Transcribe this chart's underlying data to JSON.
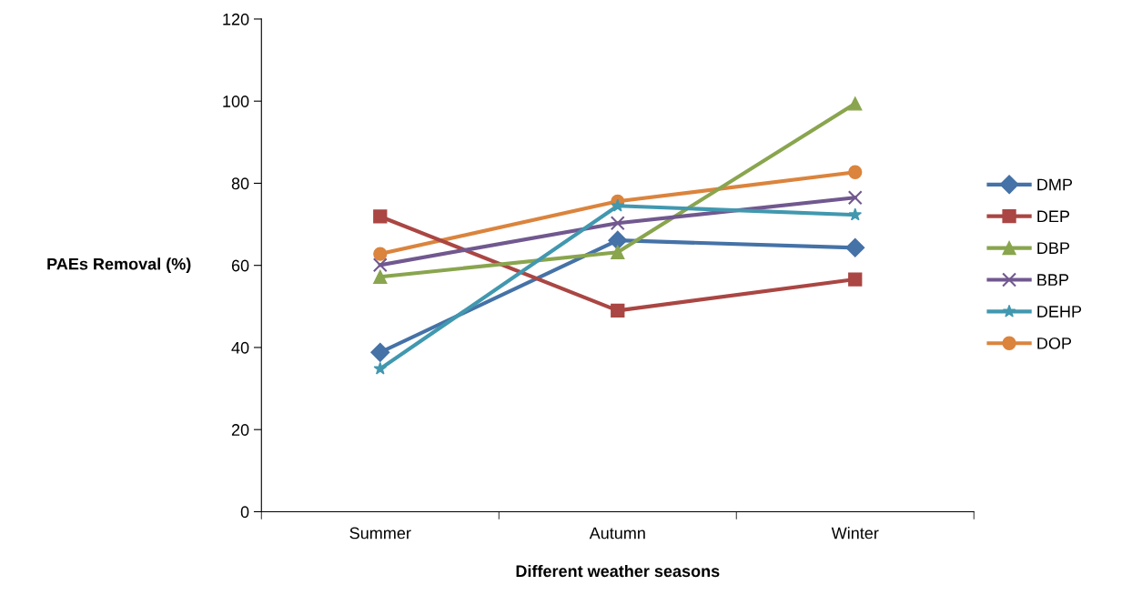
{
  "chart_data": {
    "type": "line",
    "xlabel": "Different weather seasons",
    "ylabel": "PAEs Removal (%)",
    "categories": [
      "Summer",
      "Autumn",
      "Winter"
    ],
    "series": [
      {
        "name": "DMP",
        "color": "#4572a7",
        "marker": "diamond",
        "values": [
          38.8,
          66.1,
          64.3
        ]
      },
      {
        "name": "DEP",
        "color": "#aa4643",
        "marker": "square",
        "values": [
          71.9,
          49.0,
          56.6
        ]
      },
      {
        "name": "DBP",
        "color": "#89a54e",
        "marker": "triangle",
        "values": [
          57.2,
          63.2,
          99.4
        ]
      },
      {
        "name": "BBP",
        "color": "#71588f",
        "marker": "cross",
        "values": [
          60.1,
          70.3,
          76.5
        ]
      },
      {
        "name": "DEHP",
        "color": "#4198af",
        "marker": "star",
        "values": [
          34.8,
          74.5,
          72.3
        ]
      },
      {
        "name": "DOP",
        "color": "#db843d",
        "marker": "circle",
        "values": [
          62.8,
          75.6,
          82.7
        ]
      }
    ],
    "ylim": [
      0,
      120
    ],
    "yticks": [
      0,
      20,
      40,
      60,
      80,
      100,
      120
    ],
    "grid": false,
    "legend": "right",
    "line_style": "solid"
  }
}
